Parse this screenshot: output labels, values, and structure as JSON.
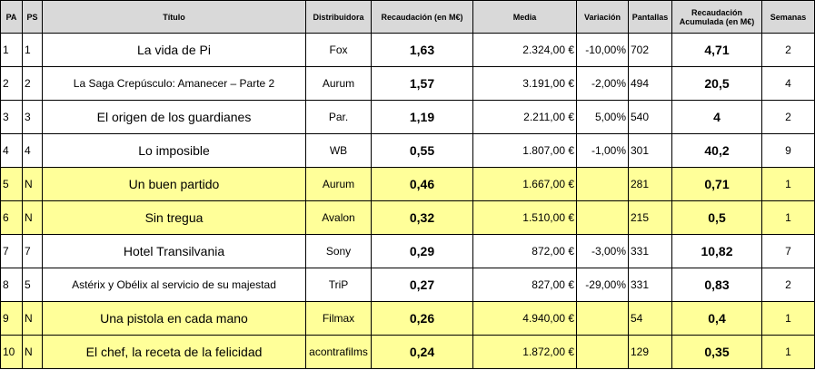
{
  "header": {
    "pa": "PA",
    "ps": "PS",
    "titulo": "Título",
    "distribuidora": "Distribuidora",
    "recaudacion": "Recaudación (en M€)",
    "media": "Media",
    "variacion": "Variación",
    "pantallas": "Pantallas",
    "acumulada": "Recaudación Acumulada (en M€)",
    "semanas": "Semanas"
  },
  "rows": [
    {
      "pa": "1",
      "ps": "1",
      "titulo": "La vida de Pi",
      "distribuidora": "Fox",
      "recaudacion": "1,63",
      "media": "2.324,00 €",
      "variacion": "-10,00%",
      "pantallas": "702",
      "acumulada": "4,71",
      "semanas": "2",
      "estreno": false
    },
    {
      "pa": "2",
      "ps": "2",
      "titulo": "La Saga Crepúsculo: Amanecer – Parte 2",
      "distribuidora": "Aurum",
      "recaudacion": "1,57",
      "media": "3.191,00 €",
      "variacion": "-2,00%",
      "pantallas": "494",
      "acumulada": "20,5",
      "semanas": "4",
      "estreno": false
    },
    {
      "pa": "3",
      "ps": "3",
      "titulo": "El origen de los guardianes",
      "distribuidora": "Par.",
      "recaudacion": "1,19",
      "media": "2.211,00 €",
      "variacion": "5,00%",
      "pantallas": "540",
      "acumulada": "4",
      "semanas": "2",
      "estreno": false
    },
    {
      "pa": "4",
      "ps": "4",
      "titulo": "Lo imposible",
      "distribuidora": "WB",
      "recaudacion": "0,55",
      "media": "1.807,00 €",
      "variacion": "-1,00%",
      "pantallas": "301",
      "acumulada": "40,2",
      "semanas": "9",
      "estreno": false
    },
    {
      "pa": "5",
      "ps": "N",
      "titulo": "Un buen partido",
      "distribuidora": "Aurum",
      "recaudacion": "0,46",
      "media": "1.667,00 €",
      "variacion": "",
      "pantallas": "281",
      "acumulada": "0,71",
      "semanas": "1",
      "estreno": true
    },
    {
      "pa": "6",
      "ps": "N",
      "titulo": "Sin tregua",
      "distribuidora": "Avalon",
      "recaudacion": "0,32",
      "media": "1.510,00 €",
      "variacion": "",
      "pantallas": "215",
      "acumulada": "0,5",
      "semanas": "1",
      "estreno": true
    },
    {
      "pa": "7",
      "ps": "7",
      "titulo": "Hotel Transilvania",
      "distribuidora": "Sony",
      "recaudacion": "0,29",
      "media": "872,00 €",
      "variacion": "-3,00%",
      "pantallas": "331",
      "acumulada": "10,82",
      "semanas": "7",
      "estreno": false
    },
    {
      "pa": "8",
      "ps": "5",
      "titulo": "Astérix y Obélix al servicio de su majestad",
      "distribuidora": "TriP",
      "recaudacion": "0,27",
      "media": "827,00 €",
      "variacion": "-29,00%",
      "pantallas": "331",
      "acumulada": "0,83",
      "semanas": "2",
      "estreno": false
    },
    {
      "pa": "9",
      "ps": "N",
      "titulo": "Una pistola en cada mano",
      "distribuidora": "Filmax",
      "recaudacion": "0,26",
      "media": "4.940,00 €",
      "variacion": "",
      "pantallas": "54",
      "acumulada": "0,4",
      "semanas": "1",
      "estreno": true
    },
    {
      "pa": "10",
      "ps": "N",
      "titulo": "El chef, la receta de la felicidad",
      "distribuidora": "acontrafilms",
      "recaudacion": "0,24",
      "media": "1.872,00 €",
      "variacion": "",
      "pantallas": "129",
      "acumulada": "0,35",
      "semanas": "1",
      "estreno": true
    }
  ],
  "colors": {
    "header_bg": "#d9d9d9",
    "new_release_bg": "#ffff99",
    "border": "#000000"
  }
}
